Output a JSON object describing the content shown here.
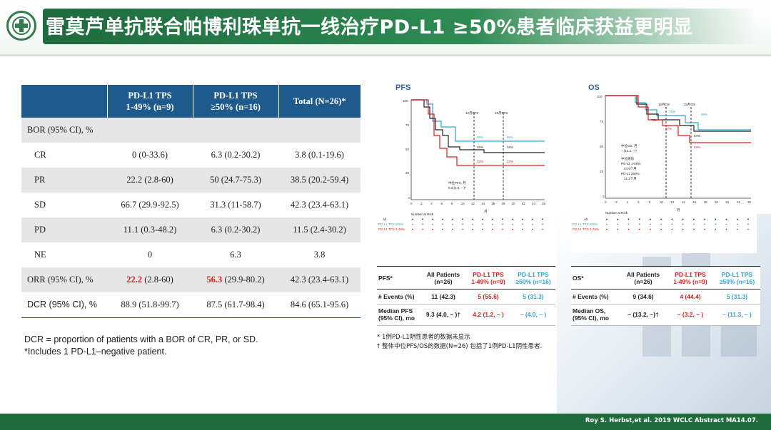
{
  "header": {
    "title": "雷莫芦单抗联合帕博利珠单抗一线治疗PD-L1 ≥50%患者临床获益更明显"
  },
  "main_table": {
    "columns": [
      "",
      "PD-L1 TPS\n1-49% (n=9)",
      "PD-L1 TPS\n≥50% (n=16)",
      "Total (N=26)*"
    ],
    "col1": [
      "PD-L1 TPS",
      "1-49% (n=9)"
    ],
    "col2": [
      "PD-L1 TPS",
      "≥50% (n=16)"
    ],
    "col3": "Total (N=26)*",
    "rows": [
      {
        "label": "BOR (95% CI), %",
        "v1": "",
        "v2": "",
        "v3": ""
      },
      {
        "label": "CR",
        "v1": "0 (0-33.6)",
        "v2": "6.3 (0.2-30.2)",
        "v3": "3.8 (0.1-19.6)"
      },
      {
        "label": "PR",
        "v1": "22.2 (2.8-60)",
        "v2": "50 (24.7-75.3)",
        "v3": "38.5 (20.2-59.4)"
      },
      {
        "label": "SD",
        "v1": "66.7 (29.9-92.5)",
        "v2": "31.3 (11-58.7)",
        "v3": "42.3 (23.4-63.1)"
      },
      {
        "label": "PD",
        "v1": "11.1 (0.3-48.2)",
        "v2": "6.3 (0.2-30.2)",
        "v3": "11.5 (2.4-30.2)"
      },
      {
        "label": "NE",
        "v1": "0",
        "v2": "6.3",
        "v3": "3.8"
      },
      {
        "label": "ORR (95% CI), %",
        "v1_hi": "22.2",
        "v1_rest": " (2.8-60)",
        "v2_hi": "56.3",
        "v2_rest": " (29.9-80.2)",
        "v3": "42.3 (23.4-63.1)"
      },
      {
        "label": "DCR (95% CI), %",
        "v1": "88.9 (51.8-99.7)",
        "v2": "87.5 (61.7-98.4)",
        "v3": "84.6 (65.1-95.6)"
      }
    ]
  },
  "footnotes": [
    "DCR = proportion of patients with a BOR of CR, PR, or SD.",
    "*Includes 1 PD-L1–negative patient."
  ],
  "pfs_chart": {
    "title": "PFS",
    "line12": "12月PFS",
    "line18": "18月PFS",
    "ann_blue": "56%",
    "ann_black": "46%",
    "ann_red": "33%",
    "ann_blue18": "56%",
    "ann_black18": "46%",
    "ann_red18": "33%",
    "median": "中位PFS, 月",
    "median_val": "9.3 (4.0, – )*",
    "xlabel": "月",
    "risk_label": "Number at Risk",
    "risk_rows": [
      "All",
      "PD-L1 TPS ≥50%",
      "PD-L1 TPS 1-49%"
    ],
    "colors": {
      "all": "#222222",
      "high": "#2fa4d8",
      "low": "#e31b1b"
    }
  },
  "os_chart": {
    "title": "OS",
    "line12": "12月OS",
    "line18": "18月OS",
    "ann_blue": "75%",
    "ann_black": "73%",
    "ann_red": "67%",
    "ann_blue18": "69%",
    "ann_black18": "64%",
    "ann_red18": "53%",
    "median": "中位OS, 月",
    "median_val": "– (13.2, –)*",
    "median_a": "中位随访",
    "median_b": "PD-L1 1-49%:",
    "median_c": "24.9个月",
    "median_d": "PD-L1 ≥50%:",
    "median_e": "21.2个月",
    "xlabel": "月",
    "risk_label": "Number at Risk",
    "risk_rows": [
      "All",
      "PD-L1 TPS ≥50%",
      "PD-L1 TPS 1-49%"
    ]
  },
  "pfs_table": {
    "h0": "PFS*",
    "h1a": "All Patients",
    "h1b": "(n=26)",
    "h2a": "PD-L1 TPS",
    "h2b": "1-49%  (n=9)",
    "h3a": "PD-L1 TPS",
    "h3b": "≥50% (n=16)",
    "r1": [
      "# Events (%)",
      "11 (42.3)",
      "5 (55.6)",
      "5 (31.3)"
    ],
    "r2_label_a": "Median PFS",
    "r2_label_b": "(95% CI), mo",
    "r2": [
      "9.3 (4.0, – )†",
      "4.2 (1.2, – )",
      "– (4.0, – )"
    ]
  },
  "os_table": {
    "h0": "OS*",
    "h1a": "All Patients",
    "h1b": "(n=26)",
    "h2a": "PD-L1 TPS",
    "h2b": "1-49%  (n=9)",
    "h3a": "PD-L1 TPS",
    "h3b": "≥50% (n=16)",
    "r1": [
      "# Events (%)",
      "9 (34.6)",
      "4 (44.4)",
      "5 (31.3)"
    ],
    "r2_label_a": "Median OS,",
    "r2_label_b": "(95% CI), mo",
    "r2": [
      "– (13.2, –)†",
      "– (3.2, – )",
      "– (11.3, – )"
    ]
  },
  "notes": [
    "* 1例PD-L1阴性患者的数据未显示",
    "† 整体中位PFS/OS的数据(N=26) 包括了1例PD-L1阴性患者."
  ],
  "footer": {
    "citation": "Roy S. Herbst,et al. 2019 WCLC Abstract MA14.07."
  }
}
